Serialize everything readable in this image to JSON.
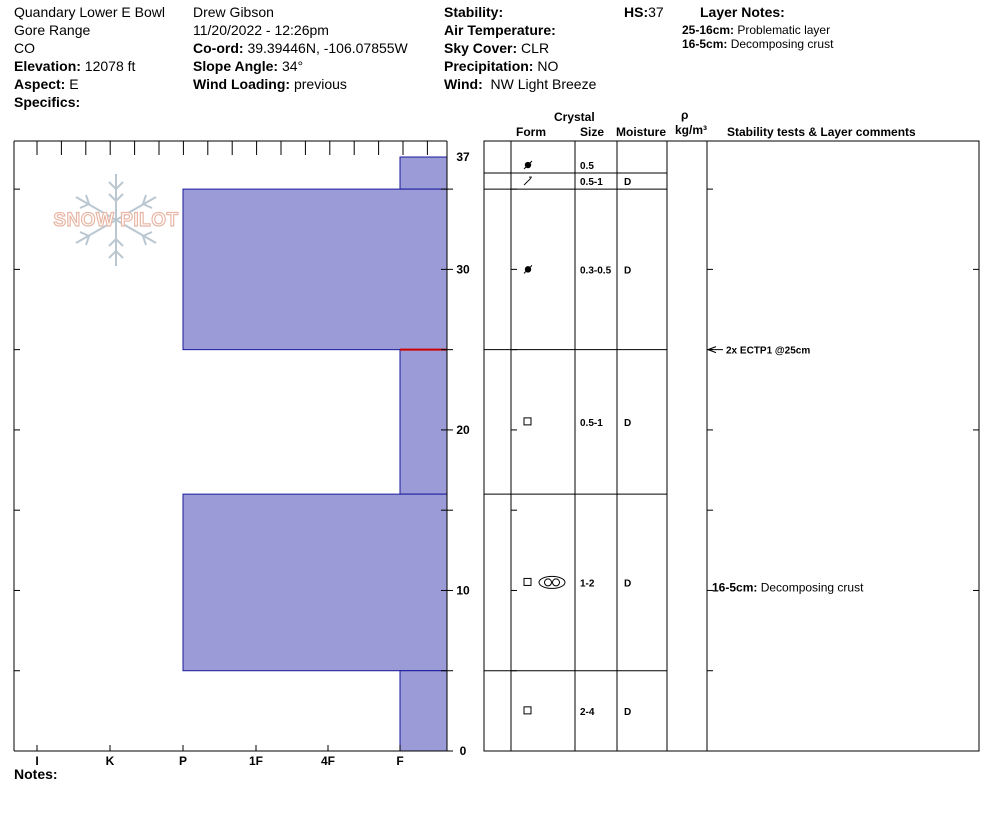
{
  "header": {
    "location": "Quandary Lower E Bowl",
    "range": "Gore Range",
    "state": "CO",
    "elevation_label": "Elevation:",
    "elevation_value": "12078 ft",
    "aspect_label": "Aspect:",
    "aspect_value": "E",
    "specifics_label": "Specifics:",
    "observer": "Drew Gibson",
    "datetime": "11/20/2022 - 12:26pm",
    "coord_label": "Co-ord:",
    "coord_value": "39.39446N, -106.07855W",
    "slope_label": "Slope Angle:",
    "slope_value": "34°",
    "wind_loading_label": "Wind Loading:",
    "wind_loading_value": "previous",
    "stability_label": "Stability:",
    "air_temp_label": "Air Temperature:",
    "sky_label": "Sky Cover:",
    "sky_value": "CLR",
    "precip_label": "Precipitation:",
    "precip_value": "NO",
    "wind_label": "Wind:",
    "wind_value": "NW Light Breeze",
    "hs_label": "HS:",
    "hs_value": "37"
  },
  "layer_notes": {
    "title": "Layer Notes:",
    "items": [
      {
        "range": "25-16cm:",
        "text": "Problematic layer"
      },
      {
        "range": "16-5cm:",
        "text": "Decomposing crust"
      }
    ]
  },
  "notes_label": "Notes:",
  "logo_text": "SNOW PILOT",
  "table_headers": {
    "crystal": "Crystal",
    "form": "Form",
    "size": "Size",
    "moisture": "Moisture",
    "rho": "ρ",
    "density_unit": "kg/m³",
    "comments": "Stability tests & Layer comments"
  },
  "colors": {
    "hardness_fill": "#9b9bd7",
    "hardness_stroke": "#1a1a9c",
    "weak_layer": "#cc0000",
    "logo": "#e8b7a6",
    "snowflake": "#b3c2cc"
  },
  "chart_data": {
    "type": "bar",
    "orientation": "horizontal",
    "hardness_scale": [
      "I",
      "K",
      "P",
      "1F",
      "4F",
      "F"
    ],
    "y_unit": "cm",
    "y_ticks": [
      0,
      10,
      20,
      30,
      37
    ],
    "ylim": [
      0,
      37
    ],
    "layers": [
      {
        "top": 37,
        "bottom": 35,
        "hardness": "F",
        "form": "graupel",
        "size": "0.5",
        "moisture": ""
      },
      {
        "top": 35,
        "bottom": 25,
        "hardness": "P",
        "form": "graupel",
        "size": "0.3-0.5",
        "moisture": "D"
      },
      {
        "top": 25,
        "bottom": 16,
        "hardness": "F",
        "form": "faceted",
        "size": "0.5-1",
        "moisture": "D"
      },
      {
        "top": 16,
        "bottom": 5,
        "hardness": "P",
        "form": "faceted-rounding",
        "size": "1-2",
        "moisture": "D"
      },
      {
        "top": 5,
        "bottom": 0,
        "hardness": "F",
        "form": "faceted",
        "size": "2-4",
        "moisture": "D"
      }
    ],
    "grain_rows": [
      {
        "top": 37,
        "bottom": 36,
        "form": "graupel",
        "size": "0.5",
        "moisture": ""
      },
      {
        "top": 36,
        "bottom": 35,
        "form": "decomposing",
        "size": "0.5-1",
        "moisture": "D"
      },
      {
        "top": 35,
        "bottom": 25,
        "form": "graupel",
        "size": "0.3-0.5",
        "moisture": "D"
      },
      {
        "top": 25,
        "bottom": 16,
        "form": "faceted",
        "size": "0.5-1",
        "moisture": "D"
      },
      {
        "top": 16,
        "bottom": 5,
        "form": "faceted-rounding",
        "size": "1-2",
        "moisture": "D"
      },
      {
        "top": 5,
        "bottom": 0,
        "form": "faceted",
        "size": "2-4",
        "moisture": "D"
      }
    ],
    "weak_layer_depth": 25,
    "stability_tests": [
      {
        "depth": 25,
        "text": "2x ECTP1 @25cm"
      }
    ],
    "layer_comments": [
      {
        "depth": 10,
        "range": "16-5cm:",
        "text": "Decomposing crust"
      }
    ]
  }
}
